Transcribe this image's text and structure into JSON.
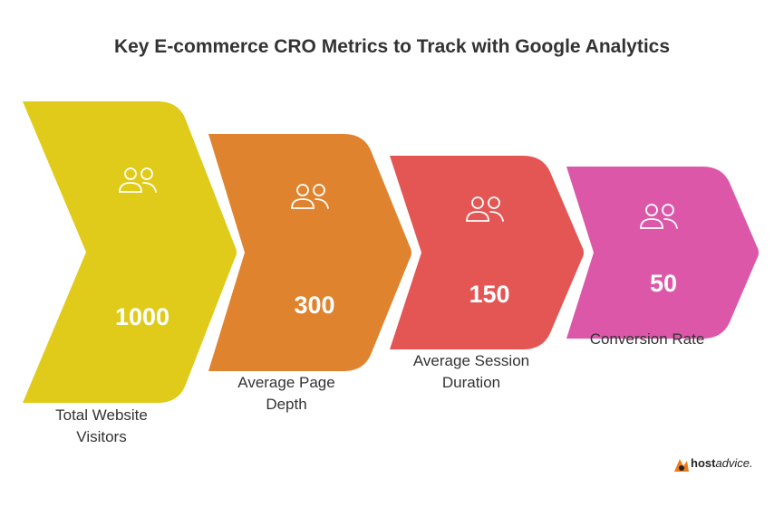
{
  "title": "Key E-commerce CRO Metrics to Track with Google Analytics",
  "stages": [
    {
      "value": "1000",
      "caption": "Total Website Visitors",
      "color": "#e0cb1a"
    },
    {
      "value": "300",
      "caption": "Average Page Depth",
      "color": "#e0832e"
    },
    {
      "value": "150",
      "caption": "Average Session Duration",
      "color": "#e35654"
    },
    {
      "value": "50",
      "caption": "Conversion Rate",
      "color": "#dc57a8"
    }
  ],
  "brand": {
    "bold": "host",
    "rest": "advice."
  }
}
